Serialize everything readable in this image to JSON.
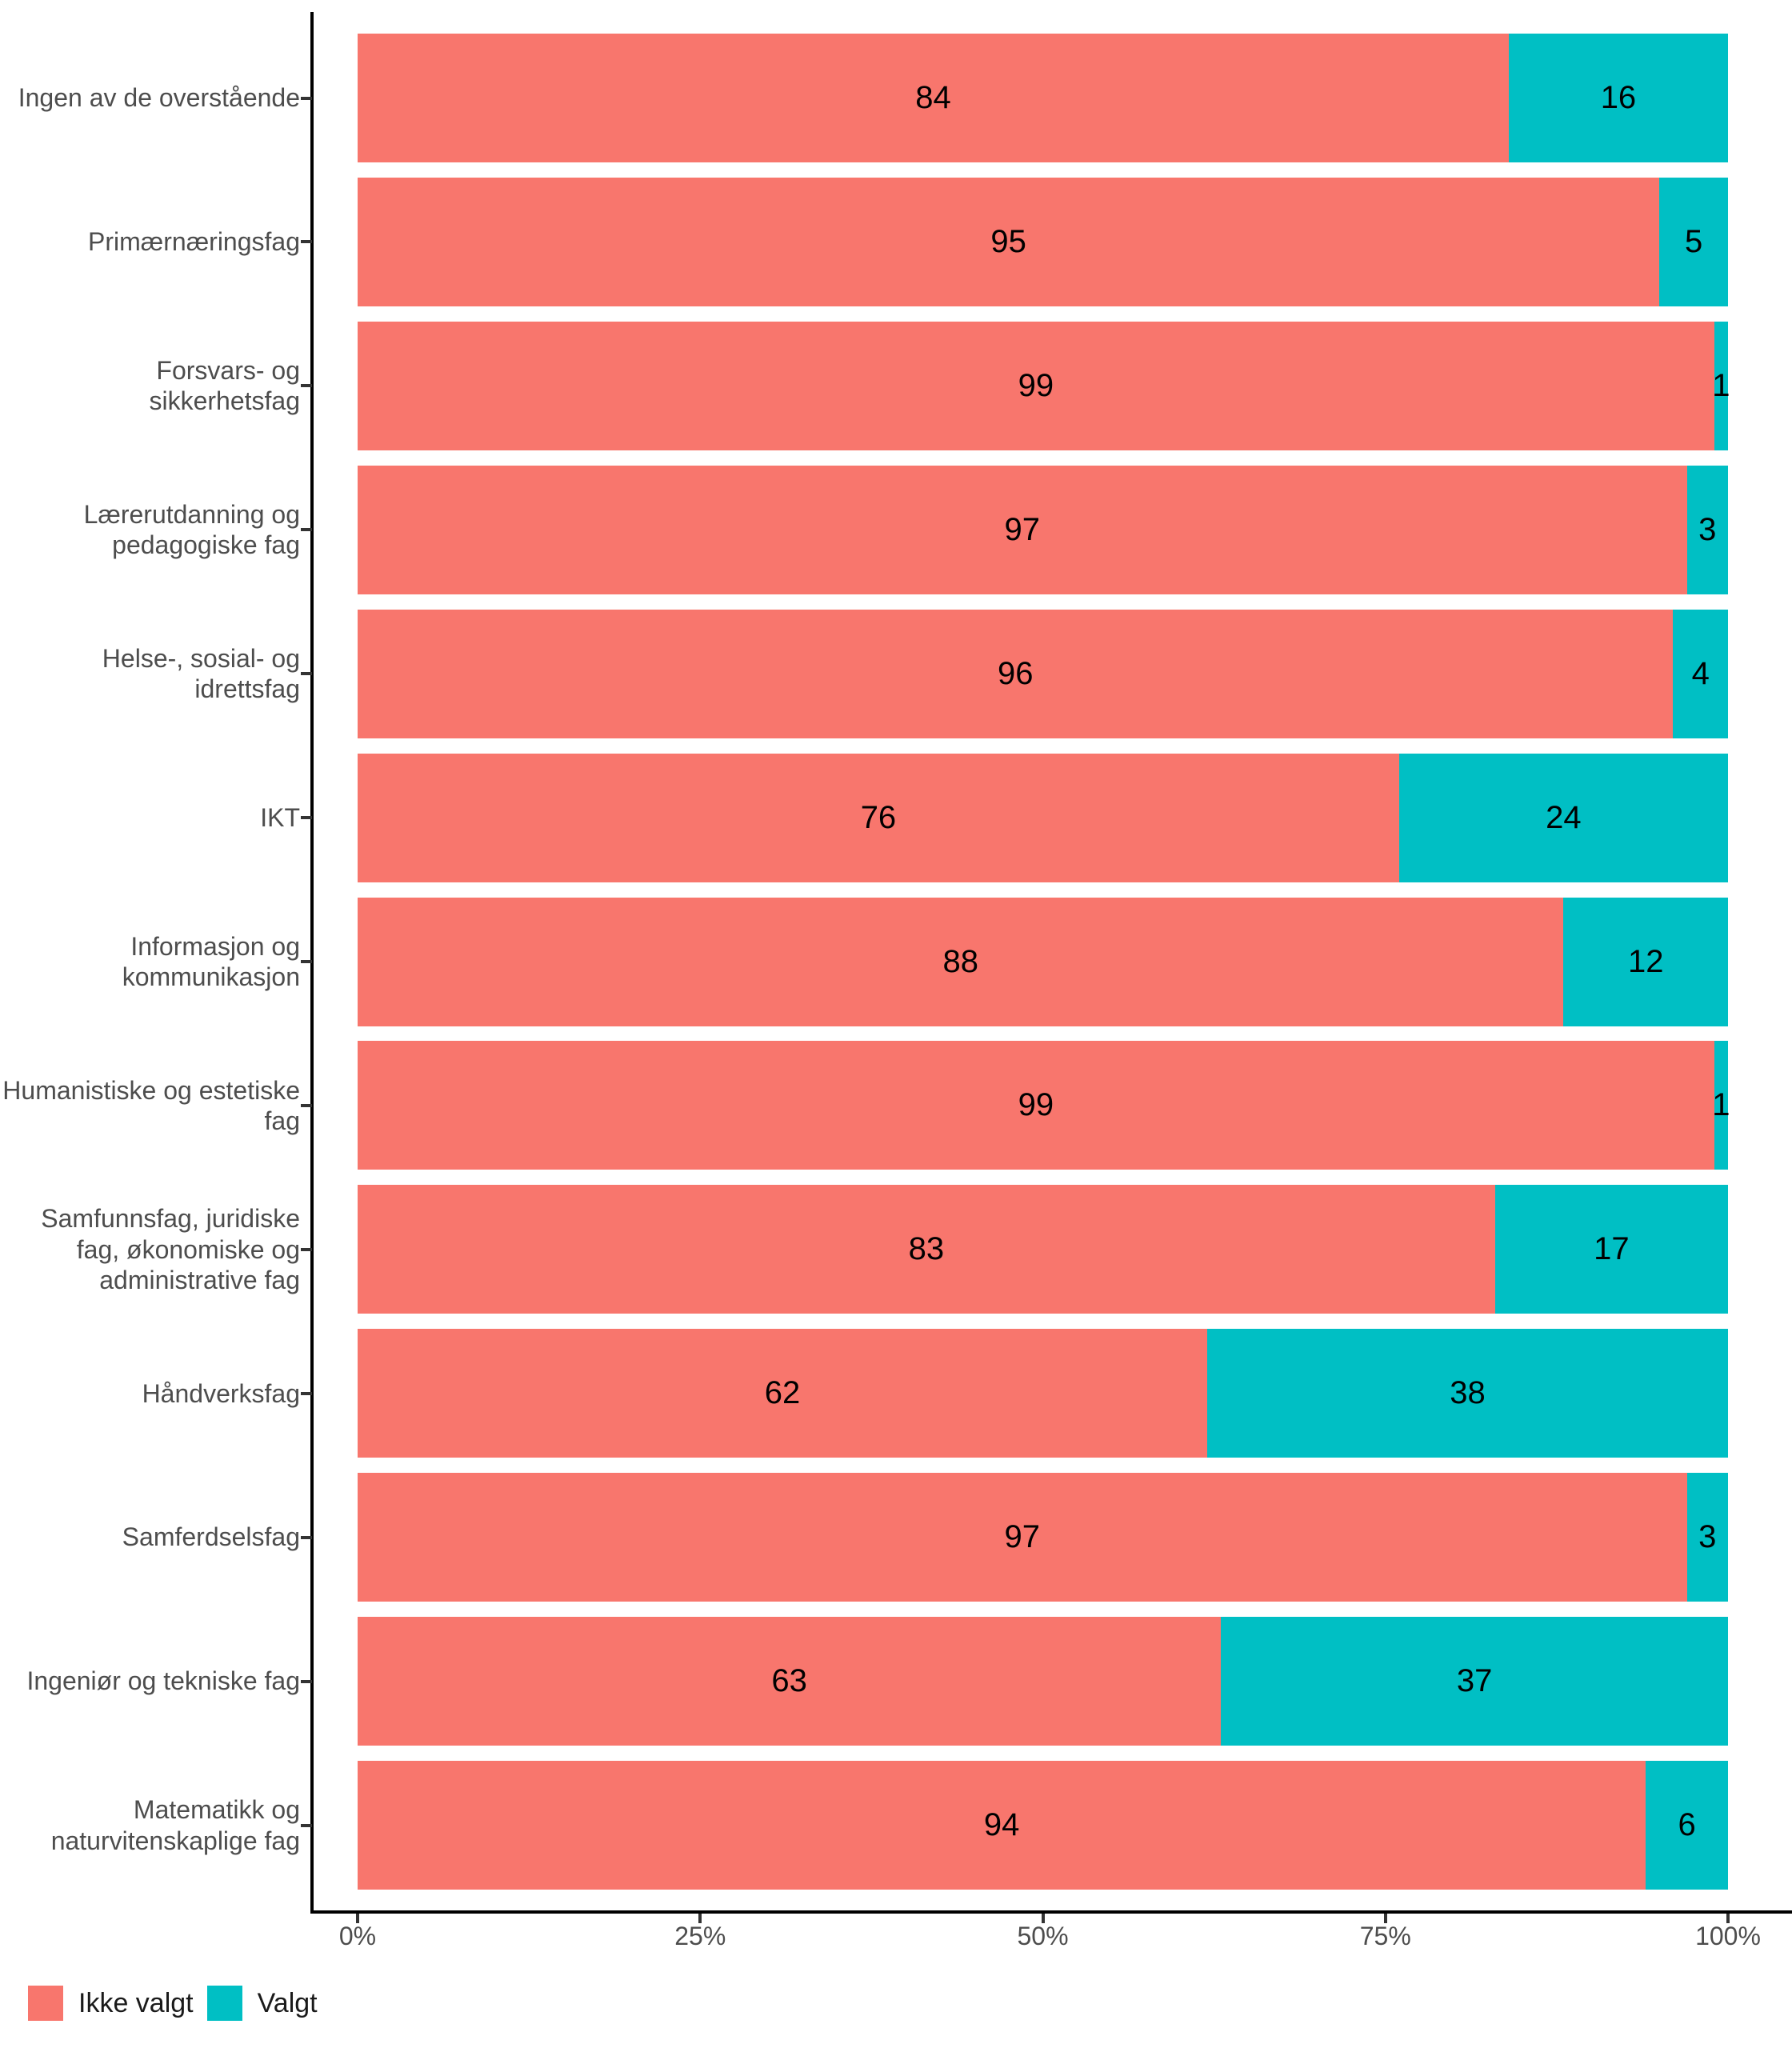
{
  "chart_data": {
    "type": "bar",
    "orientation": "horizontal",
    "stacked": true,
    "unit": "percent",
    "categories": [
      "Ingen av de overstående",
      "Primærnæringsfag",
      "Forsvars- og\nsikkerhetsfag",
      "Lærerutdanning og\npedagogiske fag",
      "Helse-, sosial- og\nidrettsfag",
      "IKT",
      "Informasjon og\nkommunikasjon",
      "Humanistiske og estetiske\nfag",
      "Samfunnsfag, juridiske\nfag, økonomiske og\nadministrative fag",
      "Håndverksfag",
      "Samferdselsfag",
      "Ingeniør og tekniske fag",
      "Matematikk og\nnaturvitenskaplige fag"
    ],
    "series": [
      {
        "name": "Ikke valgt",
        "color": "#F8766D",
        "values": [
          84,
          95,
          99,
          97,
          96,
          76,
          88,
          99,
          83,
          62,
          97,
          63,
          94
        ]
      },
      {
        "name": "Valgt",
        "color": "#00BFC4",
        "values": [
          16,
          5,
          1,
          3,
          4,
          24,
          12,
          1,
          17,
          38,
          3,
          37,
          6
        ]
      }
    ],
    "x_axis": {
      "tick_labels": [
        "0%",
        "25%",
        "50%",
        "75%",
        "100%"
      ],
      "tick_values": [
        0,
        25,
        50,
        75,
        100
      ],
      "range": [
        0,
        100
      ]
    },
    "legend": {
      "position": "bottom-left",
      "entries": [
        "Ikke valgt",
        "Valgt"
      ]
    },
    "style": {
      "axis_line_color": "#000000",
      "axis_text_color": "#4d4d4d",
      "bar_label_color": "#000000",
      "background": "#ffffff"
    }
  }
}
